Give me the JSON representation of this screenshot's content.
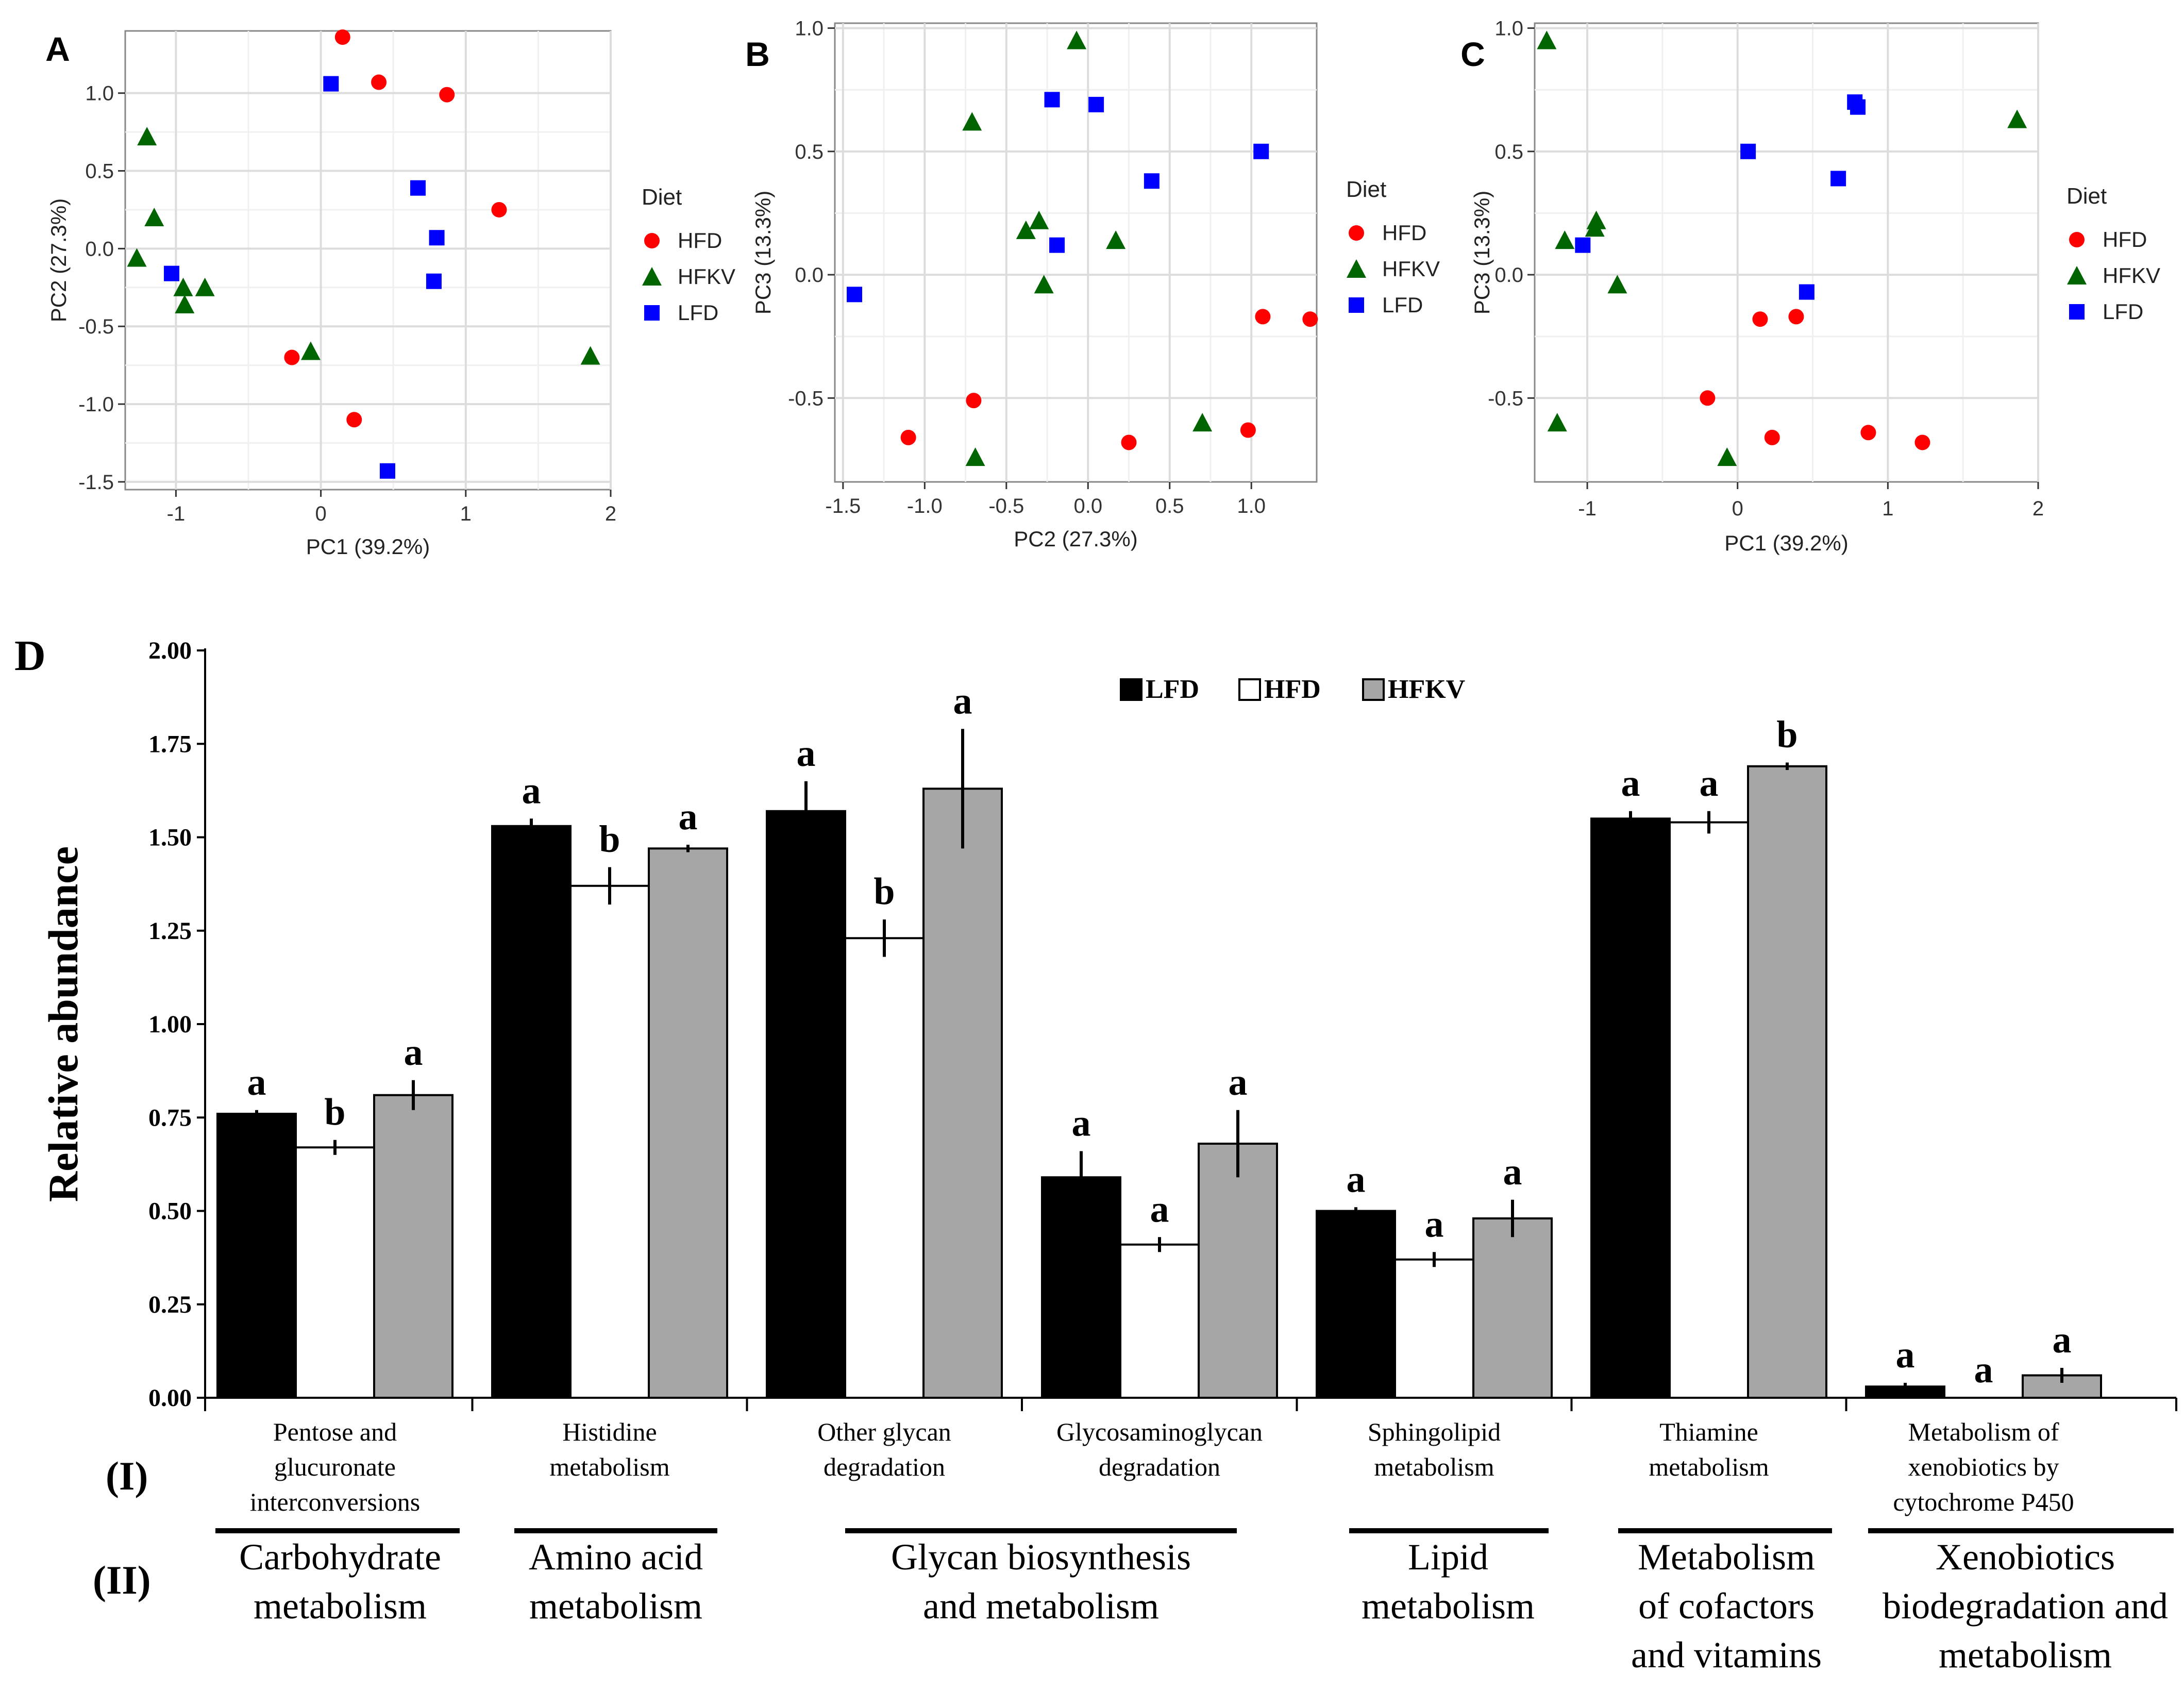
{
  "chart_data": [
    {
      "type": "scatter",
      "panel": "A",
      "xlabel": "PC1 (39.2%)",
      "ylabel": "PC2 (27.3%)",
      "xlim": [
        -1.35,
        2.0
      ],
      "ylim": [
        -1.55,
        1.4
      ],
      "xticks": [
        -1,
        0,
        1,
        2
      ],
      "xtick_labels": [
        "-1",
        "0",
        "1",
        "2"
      ],
      "yticks": [
        -1.5,
        -1.0,
        -0.5,
        0.0,
        0.5,
        1.0
      ],
      "ytick_labels": [
        "-1.5",
        "-1.0",
        "-0.5",
        "0.0",
        "0.5",
        "1.0"
      ],
      "legend_title": "Diet",
      "legend_position": "right",
      "series": [
        {
          "name": "HFD",
          "shape": "circle",
          "color": "#ff0000",
          "points": [
            [
              0.15,
              1.36
            ],
            [
              0.4,
              1.07
            ],
            [
              0.87,
              0.99
            ],
            [
              1.23,
              0.25
            ],
            [
              -0.2,
              -0.7
            ],
            [
              0.23,
              -1.1
            ]
          ]
        },
        {
          "name": "HFKV",
          "shape": "triangle",
          "color": "#006400",
          "points": [
            [
              -1.2,
              0.72
            ],
            [
              -1.15,
              0.2
            ],
            [
              -1.27,
              -0.06
            ],
            [
              -0.95,
              -0.25
            ],
            [
              -0.8,
              -0.25
            ],
            [
              -0.94,
              -0.36
            ],
            [
              -0.07,
              -0.66
            ],
            [
              1.86,
              -0.69
            ]
          ]
        },
        {
          "name": "LFD",
          "shape": "square",
          "color": "#0000ff",
          "points": [
            [
              0.07,
              1.06
            ],
            [
              0.67,
              0.39
            ],
            [
              0.8,
              0.07
            ],
            [
              0.78,
              -0.21
            ],
            [
              -1.03,
              -0.16
            ],
            [
              0.46,
              -1.43
            ]
          ]
        }
      ]
    },
    {
      "type": "scatter",
      "panel": "B",
      "xlabel": "PC2 (27.3%)",
      "ylabel": "PC3 (13.3%)",
      "xlim": [
        -1.55,
        1.4
      ],
      "ylim": [
        -0.84,
        1.02
      ],
      "xticks": [
        -1.5,
        -1.0,
        -0.5,
        0.0,
        0.5,
        1.0
      ],
      "xtick_labels": [
        "-1.5",
        "-1.0",
        "-0.5",
        "0.0",
        "0.5",
        "1.0"
      ],
      "yticks": [
        -0.5,
        0.0,
        0.5,
        1.0
      ],
      "ytick_labels": [
        "-0.5",
        "0.0",
        "0.5",
        "1.0"
      ],
      "legend_title": "Diet",
      "legend_position": "right",
      "series": [
        {
          "name": "HFD",
          "shape": "circle",
          "color": "#ff0000",
          "points": [
            [
              -0.7,
              -0.51
            ],
            [
              -1.1,
              -0.66
            ],
            [
              0.25,
              -0.68
            ],
            [
              0.98,
              -0.63
            ],
            [
              1.07,
              -0.17
            ],
            [
              1.36,
              -0.18
            ]
          ]
        },
        {
          "name": "HFKV",
          "shape": "triangle",
          "color": "#006400",
          "points": [
            [
              -0.07,
              0.95
            ],
            [
              -0.71,
              0.62
            ],
            [
              -0.3,
              0.22
            ],
            [
              -0.38,
              0.18
            ],
            [
              0.17,
              0.14
            ],
            [
              -0.27,
              -0.04
            ],
            [
              0.7,
              -0.6
            ],
            [
              -0.69,
              -0.74
            ]
          ]
        },
        {
          "name": "LFD",
          "shape": "square",
          "color": "#0000ff",
          "points": [
            [
              -0.22,
              0.71
            ],
            [
              0.05,
              0.69
            ],
            [
              1.06,
              0.5
            ],
            [
              0.39,
              0.38
            ],
            [
              -0.19,
              0.12
            ],
            [
              -1.43,
              -0.08
            ]
          ]
        }
      ]
    },
    {
      "type": "scatter",
      "panel": "C",
      "xlabel": "PC1 (39.2%)",
      "ylabel": "PC3 (13.3%)",
      "xlim": [
        -1.35,
        2.0
      ],
      "ylim": [
        -0.84,
        1.02
      ],
      "xticks": [
        -1,
        0,
        1,
        2
      ],
      "xtick_labels": [
        "-1",
        "0",
        "1",
        "2"
      ],
      "yticks": [
        -0.5,
        0.0,
        0.5,
        1.0
      ],
      "ytick_labels": [
        "-0.5",
        "0.0",
        "0.5",
        "1.0"
      ],
      "legend_title": "Diet",
      "legend_position": "right",
      "series": [
        {
          "name": "HFD",
          "shape": "circle",
          "color": "#ff0000",
          "points": [
            [
              -0.2,
              -0.5
            ],
            [
              0.15,
              -0.18
            ],
            [
              0.39,
              -0.17
            ],
            [
              0.23,
              -0.66
            ],
            [
              0.87,
              -0.64
            ],
            [
              1.23,
              -0.68
            ]
          ]
        },
        {
          "name": "HFKV",
          "shape": "triangle",
          "color": "#006400",
          "points": [
            [
              -1.27,
              0.95
            ],
            [
              -1.15,
              0.14
            ],
            [
              -0.94,
              0.22
            ],
            [
              -0.95,
              0.19
            ],
            [
              -0.8,
              -0.04
            ],
            [
              -1.2,
              -0.6
            ],
            [
              -0.07,
              -0.74
            ],
            [
              1.86,
              0.63
            ]
          ]
        },
        {
          "name": "LFD",
          "shape": "square",
          "color": "#0000ff",
          "points": [
            [
              0.78,
              0.7
            ],
            [
              0.8,
              0.68
            ],
            [
              0.07,
              0.5
            ],
            [
              0.67,
              0.39
            ],
            [
              -1.03,
              0.12
            ],
            [
              0.46,
              -0.07
            ]
          ]
        }
      ]
    },
    {
      "type": "bar",
      "panel": "D",
      "ylabel": "Relative abundance",
      "ylim": [
        0.0,
        2.0
      ],
      "yticks": [
        0.0,
        0.25,
        0.5,
        0.75,
        1.0,
        1.25,
        1.5,
        1.75,
        2.0
      ],
      "ytick_labels": [
        "0.00",
        "0.25",
        "0.50",
        "0.75",
        "1.00",
        "1.25",
        "1.50",
        "1.75",
        "2.00"
      ],
      "legend_position": "top-center",
      "row_labels": [
        "(I)",
        "(II)"
      ],
      "categories": [
        "Pentose and glucuronate interconversions",
        "Histidine metabolism",
        "Other glycan degradation",
        "Glycosaminoglycan degradation",
        "Sphingolipid metabolism",
        "Thiamine metabolism",
        "Metabolism of xenobiotics by cytochrome P450"
      ],
      "category_lines": [
        [
          "Pentose and",
          "glucuronate",
          "interconversions"
        ],
        [
          "Histidine",
          "metabolism"
        ],
        [
          "Other glycan",
          "degradation"
        ],
        [
          "Glycosaminoglycan",
          "degradation"
        ],
        [
          "Sphingolipid",
          "metabolism"
        ],
        [
          "Thiamine",
          "metabolism"
        ],
        [
          "Metabolism of",
          "xenobiotics by",
          "cytochrome P450"
        ]
      ],
      "groups": [
        {
          "lines": [
            "Carbohydrate",
            "metabolism"
          ],
          "from": 0,
          "to": 0
        },
        {
          "lines": [
            "Amino acid",
            "metabolism"
          ],
          "from": 1,
          "to": 1
        },
        {
          "lines": [
            "Glycan biosynthesis",
            "and metabolism"
          ],
          "from": 2,
          "to": 3
        },
        {
          "lines": [
            "Lipid",
            "metabolism"
          ],
          "from": 4,
          "to": 4
        },
        {
          "lines": [
            "Metabolism",
            "of cofactors",
            "and vitamins"
          ],
          "from": 5,
          "to": 5
        },
        {
          "lines": [
            "Xenobiotics",
            "biodegradation and",
            "metabolism"
          ],
          "from": 6,
          "to": 6
        }
      ],
      "series": [
        {
          "name": "LFD",
          "color": "#000000",
          "values": [
            0.76,
            1.53,
            1.57,
            0.59,
            0.5,
            1.55,
            0.03
          ],
          "errors": [
            0.01,
            0.02,
            0.08,
            0.07,
            0.01,
            0.02,
            0.01
          ],
          "letters": [
            "a",
            "a",
            "a",
            "a",
            "a",
            "a",
            "a"
          ]
        },
        {
          "name": "HFD",
          "color": "#ffffff",
          "values": [
            0.67,
            1.37,
            1.23,
            0.41,
            0.37,
            1.54,
            0.0
          ],
          "errors": [
            0.02,
            0.05,
            0.05,
            0.02,
            0.02,
            0.03,
            0.0
          ],
          "letters": [
            "b",
            "b",
            "b",
            "a",
            "a",
            "a",
            "a"
          ]
        },
        {
          "name": "HFKV",
          "color": "#a6a6a6",
          "values": [
            0.81,
            1.47,
            1.63,
            0.68,
            0.48,
            1.69,
            0.06
          ],
          "errors": [
            0.04,
            0.01,
            0.16,
            0.09,
            0.05,
            0.01,
            0.02
          ],
          "letters": [
            "a",
            "a",
            "a",
            "a",
            "a",
            "b",
            "a"
          ]
        }
      ]
    }
  ]
}
